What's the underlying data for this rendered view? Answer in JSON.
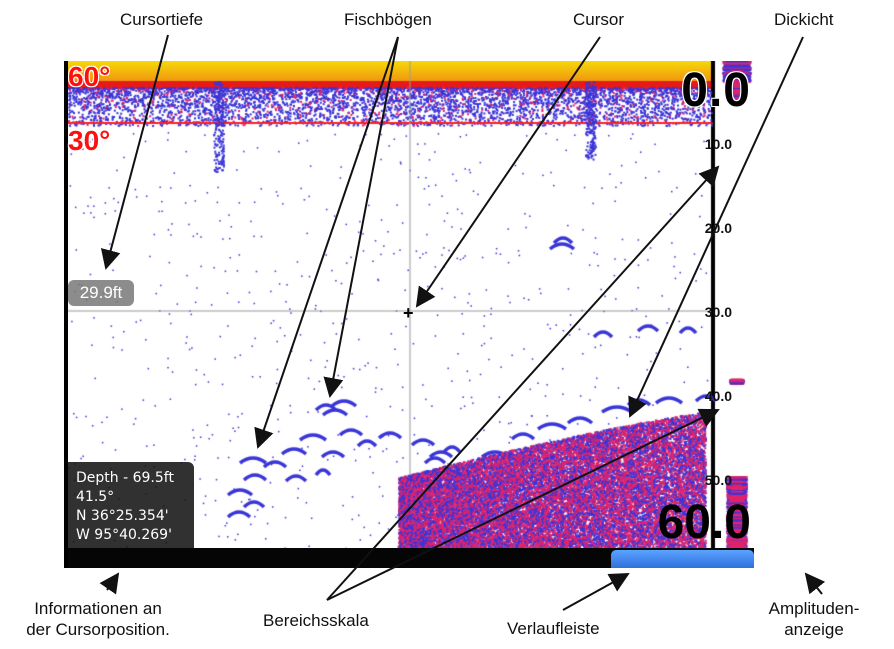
{
  "callouts": {
    "cursor_depth": "Cursortiefe",
    "fish_arches": "Fischbögen",
    "cursor": "Cursor",
    "thicket": "Dickicht",
    "cursor_info_line1": "Informationen an",
    "cursor_info_line2": "der Cursorposition.",
    "range_scale": "Bereichsskala",
    "history_bar": "Verlaufleiste",
    "amplitude_line1": "Amplituden-",
    "amplitude_line2": "anzeige"
  },
  "sonar": {
    "upper_limit": "0.0",
    "lower_limit": "60.0",
    "angle_top": "60°",
    "angle_second": "30°",
    "depth_scale": [
      "10.0",
      "20.0",
      "30.0",
      "40.0",
      "50.0"
    ],
    "cursor_depth": "29.9ft",
    "info": {
      "depth": "Depth - 69.5ft",
      "temperature": "41.5°",
      "latitude": "N  36°25.354'",
      "longitude": "W  95°40.269'"
    }
  },
  "colors": {
    "surface_yellow": "#f6d90a",
    "surface_red": "#e81a18",
    "echo_blue": "#3a35d8",
    "echo_red": "#e0246b",
    "history_thumb": "#3d82f0"
  },
  "icons": {
    "cursor": "crosshair-icon"
  }
}
